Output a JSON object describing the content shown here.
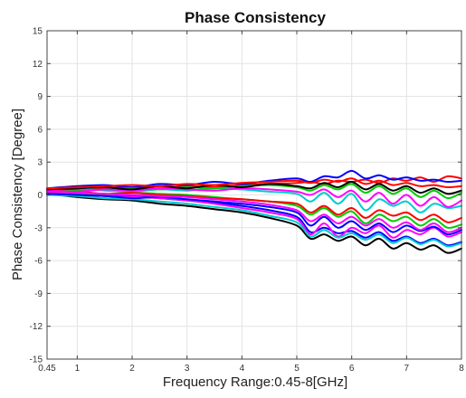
{
  "chart_data": {
    "type": "line",
    "title": "Phase Consistency",
    "xlabel": "Frequency Range:0.45-8[GHz]",
    "ylabel": "Phase Consistency [Degree]",
    "xlim": [
      0.45,
      8
    ],
    "ylim": [
      -15,
      15
    ],
    "x_ticks": [
      0.45,
      1,
      2,
      3,
      4,
      5,
      6,
      7,
      8
    ],
    "x_tick_labels": [
      "0.45",
      "1",
      "2",
      "3",
      "4",
      "5",
      "6",
      "7",
      "8"
    ],
    "y_ticks": [
      -15,
      -12,
      -9,
      -6,
      -3,
      0,
      3,
      6,
      9,
      12,
      15
    ],
    "y_tick_labels": [
      "-15",
      "-12",
      "-9",
      "-6",
      "-3",
      "0",
      "3",
      "6",
      "9",
      "12",
      "15"
    ],
    "grid": true,
    "x": [
      0.45,
      1,
      1.5,
      2,
      2.5,
      3,
      3.5,
      4,
      4.5,
      5,
      5.25,
      5.5,
      5.75,
      6,
      6.25,
      6.5,
      6.75,
      7,
      7.25,
      7.5,
      7.75,
      8
    ],
    "series": [
      {
        "color": "#000000",
        "values": [
          0.1,
          -0.2,
          -0.4,
          -0.5,
          -0.8,
          -1.0,
          -1.3,
          -1.6,
          -2.1,
          -2.8,
          -4.0,
          -3.6,
          -4.2,
          -3.8,
          -4.6,
          -4.0,
          -4.9,
          -4.4,
          -5.0,
          -4.6,
          -5.3,
          -4.9
        ]
      },
      {
        "color": "#0000ff",
        "values": [
          0.3,
          0.2,
          0.0,
          -0.1,
          -0.3,
          -0.5,
          -0.7,
          -1.0,
          -1.4,
          -2.0,
          -3.4,
          -3.0,
          -3.5,
          -3.3,
          -3.9,
          -3.4,
          -4.2,
          -3.8,
          -4.4,
          -4.0,
          -4.6,
          -4.3
        ]
      },
      {
        "color": "#ff0000",
        "values": [
          0.4,
          0.5,
          0.6,
          0.7,
          0.6,
          0.8,
          0.7,
          0.9,
          1.0,
          1.1,
          1.2,
          1.0,
          1.3,
          1.2,
          1.4,
          1.1,
          1.5,
          1.3,
          1.6,
          1.2,
          1.7,
          1.5
        ]
      },
      {
        "color": "#00cc00",
        "values": [
          0.2,
          0.1,
          0.0,
          0.2,
          0.1,
          0.0,
          -0.2,
          -0.4,
          -0.6,
          -1.0,
          -1.8,
          -1.2,
          -2.0,
          -1.5,
          -2.6,
          -1.8,
          -2.4,
          -2.0,
          -2.8,
          -2.2,
          -3.0,
          -2.7
        ]
      },
      {
        "color": "#ff00ff",
        "values": [
          0.0,
          0.0,
          -0.1,
          -0.2,
          -0.3,
          -0.5,
          -0.8,
          -1.2,
          -1.6,
          -2.2,
          -3.6,
          -2.6,
          -3.8,
          -3.0,
          -3.5,
          -2.8,
          -3.9,
          -3.2,
          -3.6,
          -3.0,
          -3.8,
          -3.4
        ]
      },
      {
        "color": "#00cccc",
        "values": [
          0.5,
          0.6,
          0.4,
          0.3,
          0.5,
          0.4,
          0.6,
          0.5,
          0.3,
          0.1,
          -0.6,
          0.2,
          -0.8,
          0.1,
          -1.4,
          -0.4,
          -1.0,
          -0.6,
          -1.6,
          -0.8,
          -1.2,
          -1.0
        ]
      },
      {
        "color": "#0000ff",
        "values": [
          0.6,
          0.8,
          0.9,
          0.7,
          1.0,
          0.9,
          1.2,
          1.0,
          1.3,
          1.5,
          1.2,
          1.7,
          1.6,
          2.2,
          1.5,
          1.8,
          1.4,
          1.6,
          1.3,
          1.4,
          1.2,
          1.3
        ]
      },
      {
        "color": "#ff0000",
        "values": [
          0.2,
          0.3,
          0.1,
          0.2,
          0.0,
          -0.1,
          -0.3,
          -0.4,
          -0.6,
          -0.8,
          -1.6,
          -1.0,
          -1.8,
          -1.2,
          -2.1,
          -1.4,
          -1.9,
          -1.6,
          -2.3,
          -1.8,
          -2.5,
          -2.1
        ]
      },
      {
        "color": "#00cc00",
        "values": [
          0.3,
          0.4,
          0.5,
          0.6,
          0.5,
          0.7,
          0.6,
          0.8,
          0.9,
          0.7,
          0.4,
          0.9,
          0.5,
          1.0,
          0.2,
          0.8,
          0.1,
          0.6,
          -0.2,
          0.4,
          -0.3,
          0.2
        ]
      },
      {
        "color": "#ff00ff",
        "values": [
          0.4,
          0.3,
          0.5,
          0.4,
          0.6,
          0.5,
          0.4,
          0.6,
          0.5,
          0.3,
          0.0,
          0.5,
          -0.2,
          0.4,
          -0.6,
          0.2,
          -0.8,
          0.0,
          -1.0,
          -0.2,
          -1.1,
          -0.5
        ]
      },
      {
        "color": "#00cccc",
        "values": [
          0.0,
          -0.1,
          -0.3,
          -0.4,
          -0.6,
          -0.8,
          -1.1,
          -1.4,
          -1.9,
          -2.5,
          -3.8,
          -3.2,
          -3.9,
          -3.5,
          -4.1,
          -3.6,
          -4.4,
          -3.9,
          -4.5,
          -4.1,
          -4.7,
          -4.4
        ]
      },
      {
        "color": "#000000",
        "values": [
          0.5,
          0.6,
          0.7,
          0.5,
          0.8,
          0.6,
          0.9,
          0.7,
          1.0,
          0.8,
          0.6,
          1.1,
          0.7,
          1.2,
          0.5,
          1.0,
          0.4,
          0.8,
          0.2,
          0.6,
          0.1,
          0.4
        ]
      },
      {
        "color": "#0000ff",
        "values": [
          0.1,
          0.0,
          -0.1,
          -0.3,
          -0.2,
          -0.4,
          -0.6,
          -0.8,
          -1.1,
          -1.6,
          -2.8,
          -2.0,
          -3.0,
          -2.4,
          -3.2,
          -2.6,
          -3.4,
          -2.8,
          -3.3,
          -2.9,
          -3.6,
          -3.2
        ]
      },
      {
        "color": "#ff0000",
        "values": [
          0.6,
          0.7,
          0.8,
          0.9,
          0.8,
          1.0,
          0.9,
          1.1,
          1.2,
          1.3,
          1.1,
          1.4,
          1.2,
          1.5,
          1.0,
          1.3,
          0.9,
          1.1,
          0.8,
          0.9,
          0.7,
          0.8
        ]
      },
      {
        "color": "#ff00ff",
        "values": [
          0.3,
          0.2,
          0.1,
          0.0,
          -0.1,
          -0.2,
          -0.4,
          -0.6,
          -0.9,
          -1.4,
          -2.4,
          -1.8,
          -2.6,
          -2.0,
          -2.8,
          -2.2,
          -3.0,
          -2.5,
          -3.2,
          -2.6,
          -3.4,
          -3.0
        ]
      }
    ]
  }
}
